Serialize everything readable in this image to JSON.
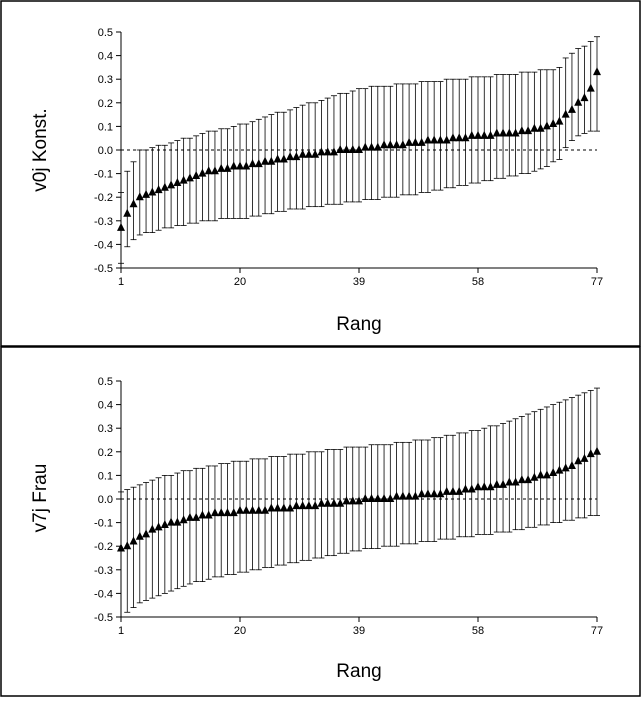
{
  "chart_data": [
    {
      "type": "scatter",
      "ylabel": "v0j Konst.",
      "xlabel": "Rang",
      "xlim": [
        1,
        77
      ],
      "ylim": [
        -0.5,
        0.5
      ],
      "xticks": [
        "1",
        "20",
        "39",
        "58",
        "77"
      ],
      "yticks": [
        "0.5",
        "0.4",
        "0.3",
        "0.2",
        "0.1",
        "0.0",
        "-0.1",
        "-0.2",
        "-0.3",
        "-0.4",
        "-0.5"
      ],
      "reference_line": 0.0,
      "marker": "triangle",
      "error_bars": true,
      "series": [
        {
          "x": [
            1,
            2,
            3,
            4,
            5,
            6,
            7,
            8,
            9,
            10,
            11,
            12,
            13,
            14,
            15,
            16,
            17,
            18,
            19,
            20,
            21,
            22,
            23,
            24,
            25,
            26,
            27,
            28,
            29,
            30,
            31,
            32,
            33,
            34,
            35,
            36,
            37,
            38,
            39,
            40,
            41,
            42,
            43,
            44,
            45,
            46,
            47,
            48,
            49,
            50,
            51,
            52,
            53,
            54,
            55,
            56,
            57,
            58,
            59,
            60,
            61,
            62,
            63,
            64,
            65,
            66,
            67,
            68,
            69,
            70,
            71,
            72,
            73,
            74,
            75,
            76,
            77
          ],
          "y": [
            -0.33,
            -0.27,
            -0.23,
            -0.2,
            -0.19,
            -0.18,
            -0.17,
            -0.16,
            -0.15,
            -0.14,
            -0.13,
            -0.12,
            -0.11,
            -0.1,
            -0.09,
            -0.09,
            -0.08,
            -0.08,
            -0.07,
            -0.07,
            -0.07,
            -0.06,
            -0.06,
            -0.05,
            -0.05,
            -0.04,
            -0.04,
            -0.03,
            -0.03,
            -0.02,
            -0.02,
            -0.02,
            -0.01,
            -0.01,
            -0.01,
            0.0,
            0.0,
            0.0,
            0.0,
            0.01,
            0.01,
            0.01,
            0.02,
            0.02,
            0.02,
            0.02,
            0.03,
            0.03,
            0.03,
            0.04,
            0.04,
            0.04,
            0.04,
            0.05,
            0.05,
            0.05,
            0.06,
            0.06,
            0.06,
            0.06,
            0.07,
            0.07,
            0.07,
            0.07,
            0.08,
            0.08,
            0.09,
            0.09,
            0.1,
            0.11,
            0.12,
            0.15,
            0.17,
            0.2,
            0.22,
            0.26,
            0.33
          ],
          "lower": [
            -0.48,
            -0.41,
            -0.38,
            -0.36,
            -0.35,
            -0.35,
            -0.34,
            -0.33,
            -0.33,
            -0.32,
            -0.32,
            -0.31,
            -0.31,
            -0.3,
            -0.3,
            -0.3,
            -0.29,
            -0.29,
            -0.29,
            -0.29,
            -0.29,
            -0.28,
            -0.28,
            -0.27,
            -0.27,
            -0.26,
            -0.26,
            -0.25,
            -0.25,
            -0.25,
            -0.24,
            -0.24,
            -0.24,
            -0.23,
            -0.23,
            -0.23,
            -0.22,
            -0.22,
            -0.22,
            -0.21,
            -0.21,
            -0.21,
            -0.2,
            -0.2,
            -0.2,
            -0.19,
            -0.19,
            -0.19,
            -0.18,
            -0.18,
            -0.17,
            -0.17,
            -0.16,
            -0.16,
            -0.15,
            -0.15,
            -0.14,
            -0.14,
            -0.13,
            -0.13,
            -0.12,
            -0.12,
            -0.11,
            -0.11,
            -0.1,
            -0.1,
            -0.09,
            -0.08,
            -0.07,
            -0.05,
            -0.04,
            0.01,
            0.04,
            0.06,
            0.07,
            0.08,
            0.08
          ],
          "upper": [
            -0.18,
            -0.09,
            -0.05,
            0.0,
            0.0,
            0.01,
            0.02,
            0.02,
            0.03,
            0.04,
            0.05,
            0.05,
            0.06,
            0.07,
            0.08,
            0.08,
            0.09,
            0.09,
            0.1,
            0.11,
            0.11,
            0.12,
            0.13,
            0.14,
            0.15,
            0.16,
            0.16,
            0.17,
            0.18,
            0.19,
            0.2,
            0.2,
            0.21,
            0.22,
            0.23,
            0.24,
            0.24,
            0.25,
            0.26,
            0.26,
            0.27,
            0.27,
            0.27,
            0.27,
            0.28,
            0.28,
            0.28,
            0.28,
            0.29,
            0.29,
            0.29,
            0.29,
            0.3,
            0.3,
            0.3,
            0.3,
            0.31,
            0.31,
            0.31,
            0.31,
            0.32,
            0.32,
            0.32,
            0.32,
            0.33,
            0.33,
            0.33,
            0.34,
            0.34,
            0.34,
            0.35,
            0.39,
            0.41,
            0.43,
            0.44,
            0.46,
            0.48
          ]
        }
      ]
    },
    {
      "type": "scatter",
      "ylabel": "v7j Frau",
      "xlabel": "Rang",
      "xlim": [
        1,
        77
      ],
      "ylim": [
        -0.5,
        0.5
      ],
      "xticks": [
        "1",
        "20",
        "39",
        "58",
        "77"
      ],
      "yticks": [
        "0.5",
        "0.4",
        "0.3",
        "0.2",
        "0.1",
        "0.0",
        "-0.1",
        "-0.2",
        "-0.3",
        "-0.4",
        "-0.5"
      ],
      "reference_line": 0.0,
      "marker": "triangle",
      "error_bars": true,
      "series": [
        {
          "x": [
            1,
            2,
            3,
            4,
            5,
            6,
            7,
            8,
            9,
            10,
            11,
            12,
            13,
            14,
            15,
            16,
            17,
            18,
            19,
            20,
            21,
            22,
            23,
            24,
            25,
            26,
            27,
            28,
            29,
            30,
            31,
            32,
            33,
            34,
            35,
            36,
            37,
            38,
            39,
            40,
            41,
            42,
            43,
            44,
            45,
            46,
            47,
            48,
            49,
            50,
            51,
            52,
            53,
            54,
            55,
            56,
            57,
            58,
            59,
            60,
            61,
            62,
            63,
            64,
            65,
            66,
            67,
            68,
            69,
            70,
            71,
            72,
            73,
            74,
            75,
            76,
            77
          ],
          "y": [
            -0.21,
            -0.2,
            -0.18,
            -0.16,
            -0.15,
            -0.13,
            -0.12,
            -0.11,
            -0.1,
            -0.1,
            -0.09,
            -0.08,
            -0.08,
            -0.07,
            -0.07,
            -0.06,
            -0.06,
            -0.06,
            -0.06,
            -0.05,
            -0.05,
            -0.05,
            -0.05,
            -0.05,
            -0.04,
            -0.04,
            -0.04,
            -0.04,
            -0.03,
            -0.03,
            -0.03,
            -0.03,
            -0.02,
            -0.02,
            -0.02,
            -0.02,
            -0.01,
            -0.01,
            -0.01,
            0.0,
            0.0,
            0.0,
            0.0,
            0.0,
            0.01,
            0.01,
            0.01,
            0.01,
            0.02,
            0.02,
            0.02,
            0.02,
            0.03,
            0.03,
            0.03,
            0.04,
            0.04,
            0.05,
            0.05,
            0.05,
            0.06,
            0.06,
            0.07,
            0.07,
            0.08,
            0.08,
            0.09,
            0.1,
            0.1,
            0.11,
            0.12,
            0.13,
            0.14,
            0.16,
            0.17,
            0.19,
            0.2
          ],
          "lower": [
            -0.5,
            -0.48,
            -0.46,
            -0.44,
            -0.43,
            -0.42,
            -0.41,
            -0.4,
            -0.39,
            -0.38,
            -0.37,
            -0.36,
            -0.35,
            -0.35,
            -0.34,
            -0.33,
            -0.33,
            -0.32,
            -0.32,
            -0.31,
            -0.31,
            -0.3,
            -0.3,
            -0.29,
            -0.29,
            -0.28,
            -0.28,
            -0.27,
            -0.27,
            -0.26,
            -0.26,
            -0.25,
            -0.25,
            -0.24,
            -0.24,
            -0.23,
            -0.23,
            -0.22,
            -0.22,
            -0.21,
            -0.21,
            -0.21,
            -0.2,
            -0.2,
            -0.2,
            -0.19,
            -0.19,
            -0.19,
            -0.18,
            -0.18,
            -0.18,
            -0.17,
            -0.17,
            -0.17,
            -0.16,
            -0.16,
            -0.16,
            -0.15,
            -0.15,
            -0.15,
            -0.14,
            -0.14,
            -0.14,
            -0.13,
            -0.13,
            -0.12,
            -0.12,
            -0.11,
            -0.11,
            -0.1,
            -0.1,
            -0.09,
            -0.09,
            -0.08,
            -0.08,
            -0.07,
            -0.07
          ],
          "upper": [
            0.03,
            0.04,
            0.05,
            0.06,
            0.07,
            0.08,
            0.09,
            0.1,
            0.1,
            0.11,
            0.12,
            0.12,
            0.13,
            0.13,
            0.14,
            0.14,
            0.15,
            0.15,
            0.16,
            0.16,
            0.16,
            0.17,
            0.17,
            0.17,
            0.18,
            0.18,
            0.18,
            0.19,
            0.19,
            0.19,
            0.2,
            0.2,
            0.2,
            0.21,
            0.21,
            0.21,
            0.22,
            0.22,
            0.22,
            0.22,
            0.23,
            0.23,
            0.23,
            0.23,
            0.24,
            0.24,
            0.24,
            0.25,
            0.25,
            0.25,
            0.26,
            0.26,
            0.27,
            0.27,
            0.28,
            0.28,
            0.29,
            0.29,
            0.3,
            0.31,
            0.31,
            0.32,
            0.33,
            0.34,
            0.35,
            0.36,
            0.37,
            0.38,
            0.39,
            0.4,
            0.41,
            0.42,
            0.43,
            0.44,
            0.45,
            0.46,
            0.47
          ]
        }
      ]
    }
  ]
}
